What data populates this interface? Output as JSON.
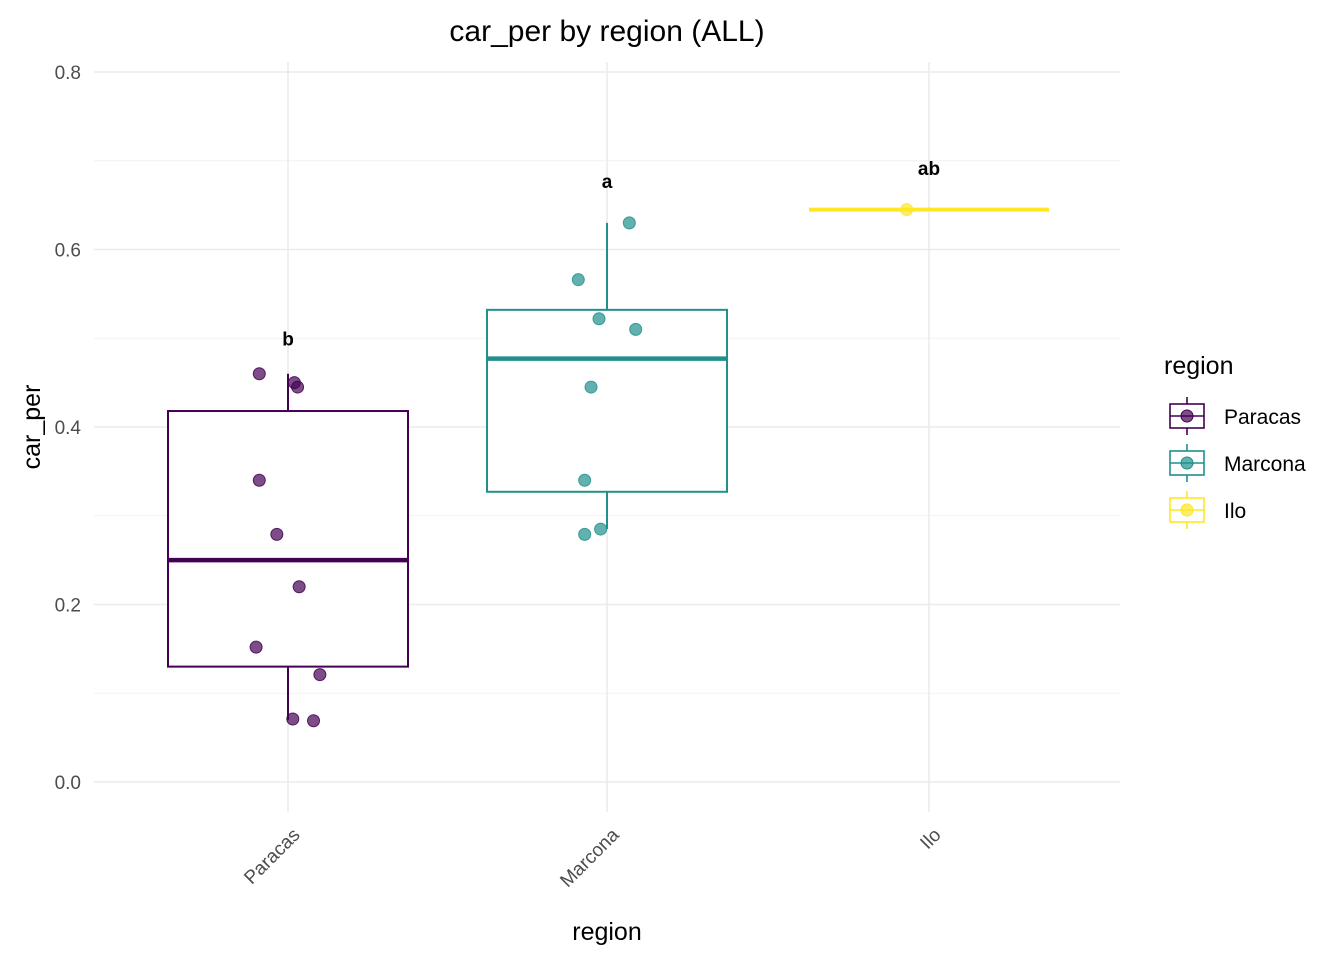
{
  "chart_data": {
    "type": "boxplot",
    "title": "car_per by region (ALL)",
    "xlabel": "region",
    "ylabel": "car_per",
    "ylim": [
      -0.035,
      0.82
    ],
    "yticks": [
      0.0,
      0.2,
      0.4,
      0.6,
      0.8
    ],
    "ytick_labels": [
      "0.0",
      "0.2",
      "0.4",
      "0.6",
      "0.8"
    ],
    "categories": [
      "Paracas",
      "Marcona",
      "Ilo"
    ],
    "legend": {
      "title": "region",
      "placement": "right",
      "entries": [
        "Paracas",
        "Marcona",
        "Ilo"
      ]
    },
    "colors": {
      "Paracas": "#440154",
      "Marcona": "#21908C",
      "Ilo": "#FDE725"
    },
    "groups": [
      {
        "name": "Paracas",
        "q1": 0.13,
        "median": 0.25,
        "q3": 0.418,
        "whisker_low": 0.07,
        "whisker_high": 0.46,
        "letter": "b",
        "letter_y": 0.5,
        "points": [
          {
            "offset": -0.09,
            "y": 0.46
          },
          {
            "offset": 0.02,
            "y": 0.45
          },
          {
            "offset": 0.03,
            "y": 0.445
          },
          {
            "offset": -0.09,
            "y": 0.34
          },
          {
            "offset": -0.035,
            "y": 0.279
          },
          {
            "offset": 0.035,
            "y": 0.22
          },
          {
            "offset": -0.1,
            "y": 0.152
          },
          {
            "offset": 0.1,
            "y": 0.121
          },
          {
            "offset": 0.015,
            "y": 0.071
          },
          {
            "offset": 0.08,
            "y": 0.069
          }
        ]
      },
      {
        "name": "Marcona",
        "q1": 0.327,
        "median": 0.477,
        "q3": 0.532,
        "whisker_low": 0.285,
        "whisker_high": 0.63,
        "letter": "a",
        "letter_y": 0.677,
        "points": [
          {
            "offset": 0.07,
            "y": 0.63
          },
          {
            "offset": -0.09,
            "y": 0.566
          },
          {
            "offset": -0.025,
            "y": 0.522
          },
          {
            "offset": 0.09,
            "y": 0.51
          },
          {
            "offset": -0.05,
            "y": 0.445
          },
          {
            "offset": -0.07,
            "y": 0.34
          },
          {
            "offset": -0.07,
            "y": 0.279
          },
          {
            "offset": -0.02,
            "y": 0.285
          }
        ]
      },
      {
        "name": "Ilo",
        "q1": 0.645,
        "median": 0.645,
        "q3": 0.645,
        "whisker_low": 0.645,
        "whisker_high": 0.645,
        "letter": "ab",
        "letter_y": 0.692,
        "points": [
          {
            "offset": -0.07,
            "y": 0.645
          }
        ]
      }
    ]
  }
}
